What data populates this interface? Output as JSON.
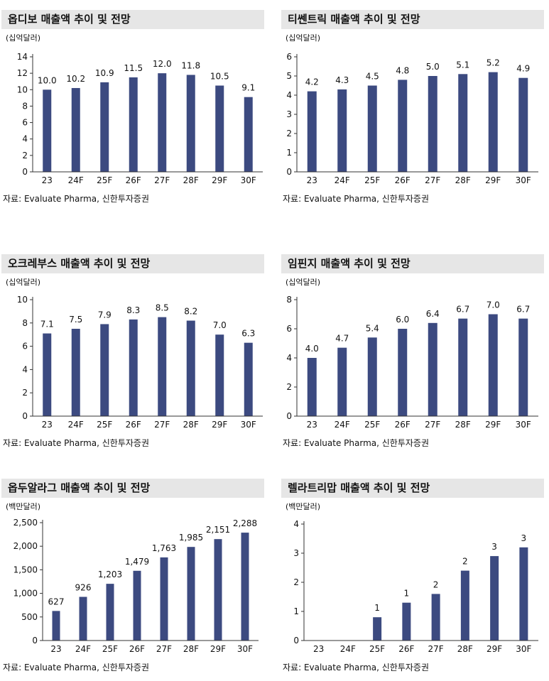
{
  "source_label": "자료: Evaluate Pharma, 신한투자증권",
  "colors": {
    "bar": "#3c4a80",
    "title_bg": "#e6e6e6",
    "axis": "#333333"
  },
  "chart_data": [
    {
      "type": "bar",
      "title": "옵디보 매출액 추이 및 전망",
      "unit": "(십억달러)",
      "categories": [
        "23",
        "24F",
        "25F",
        "26F",
        "27F",
        "28F",
        "29F",
        "30F"
      ],
      "values": [
        10.0,
        10.2,
        10.9,
        11.5,
        12.0,
        11.8,
        10.5,
        9.1
      ],
      "value_labels": [
        "10.0",
        "10.2",
        "10.9",
        "11.5",
        "12.0",
        "11.8",
        "10.5",
        "9.1"
      ],
      "yticks": [
        "0",
        "2",
        "4",
        "6",
        "8",
        "10",
        "12",
        "14"
      ],
      "ylim": [
        0,
        14
      ]
    },
    {
      "type": "bar",
      "title": "티쎈트릭 매출액 추이 및 전망",
      "unit": "(십억달러)",
      "categories": [
        "23",
        "24F",
        "25F",
        "26F",
        "27F",
        "28F",
        "29F",
        "30F"
      ],
      "values": [
        4.2,
        4.3,
        4.5,
        4.8,
        5.0,
        5.1,
        5.2,
        4.9
      ],
      "value_labels": [
        "4.2",
        "4.3",
        "4.5",
        "4.8",
        "5.0",
        "5.1",
        "5.2",
        "4.9"
      ],
      "yticks": [
        "0",
        "1",
        "2",
        "3",
        "4",
        "5",
        "6"
      ],
      "ylim": [
        0,
        6
      ]
    },
    {
      "type": "bar",
      "title": "오크레부스 매출액 추이 및 전망",
      "unit": "(십억달러)",
      "categories": [
        "23",
        "24F",
        "25F",
        "26F",
        "27F",
        "28F",
        "29F",
        "30F"
      ],
      "values": [
        7.1,
        7.5,
        7.9,
        8.3,
        8.5,
        8.2,
        7.0,
        6.3
      ],
      "value_labels": [
        "7.1",
        "7.5",
        "7.9",
        "8.3",
        "8.5",
        "8.2",
        "7.0",
        "6.3"
      ],
      "yticks": [
        "0",
        "2",
        "4",
        "6",
        "8",
        "10"
      ],
      "ylim": [
        0,
        10
      ]
    },
    {
      "type": "bar",
      "title": "임핀지 매출액 추이 및 전망",
      "unit": "(십억달러)",
      "categories": [
        "23",
        "24F",
        "25F",
        "26F",
        "27F",
        "28F",
        "29F",
        "30F"
      ],
      "values": [
        4.0,
        4.7,
        5.4,
        6.0,
        6.4,
        6.7,
        7.0,
        6.7
      ],
      "value_labels": [
        "4.0",
        "4.7",
        "5.4",
        "6.0",
        "6.4",
        "6.7",
        "7.0",
        "6.7"
      ],
      "yticks": [
        "0",
        "2",
        "4",
        "6",
        "8"
      ],
      "ylim": [
        0,
        8
      ]
    },
    {
      "type": "bar",
      "title": "옵두알라그 매출액 추이 및 전망",
      "unit": "(백만달러)",
      "categories": [
        "23",
        "24F",
        "25F",
        "26F",
        "27F",
        "28F",
        "29F",
        "30F"
      ],
      "values": [
        627,
        926,
        1203,
        1479,
        1763,
        1985,
        2151,
        2288
      ],
      "value_labels": [
        "627",
        "926",
        "1,203",
        "1,479",
        "1,763",
        "1,985",
        "2,151",
        "2,288"
      ],
      "yticks": [
        "0",
        "500",
        "1,000",
        "1,500",
        "2,000",
        "2,500"
      ],
      "ylim": [
        0,
        2500
      ]
    },
    {
      "type": "bar",
      "title": "렐라트리맙 매출액 추이 및 전망",
      "unit": "(백만달러)",
      "categories": [
        "23",
        "24F",
        "25F",
        "26F",
        "27F",
        "28F",
        "29F",
        "30F"
      ],
      "values": [
        null,
        null,
        0.8,
        1.3,
        1.6,
        2.4,
        2.9,
        3.2
      ],
      "value_labels": [
        "",
        "",
        "1",
        "1",
        "2",
        "2",
        "3",
        "3"
      ],
      "yticks": [
        "0",
        "1",
        "2",
        "3",
        "4"
      ],
      "ylim": [
        0,
        4
      ]
    }
  ]
}
